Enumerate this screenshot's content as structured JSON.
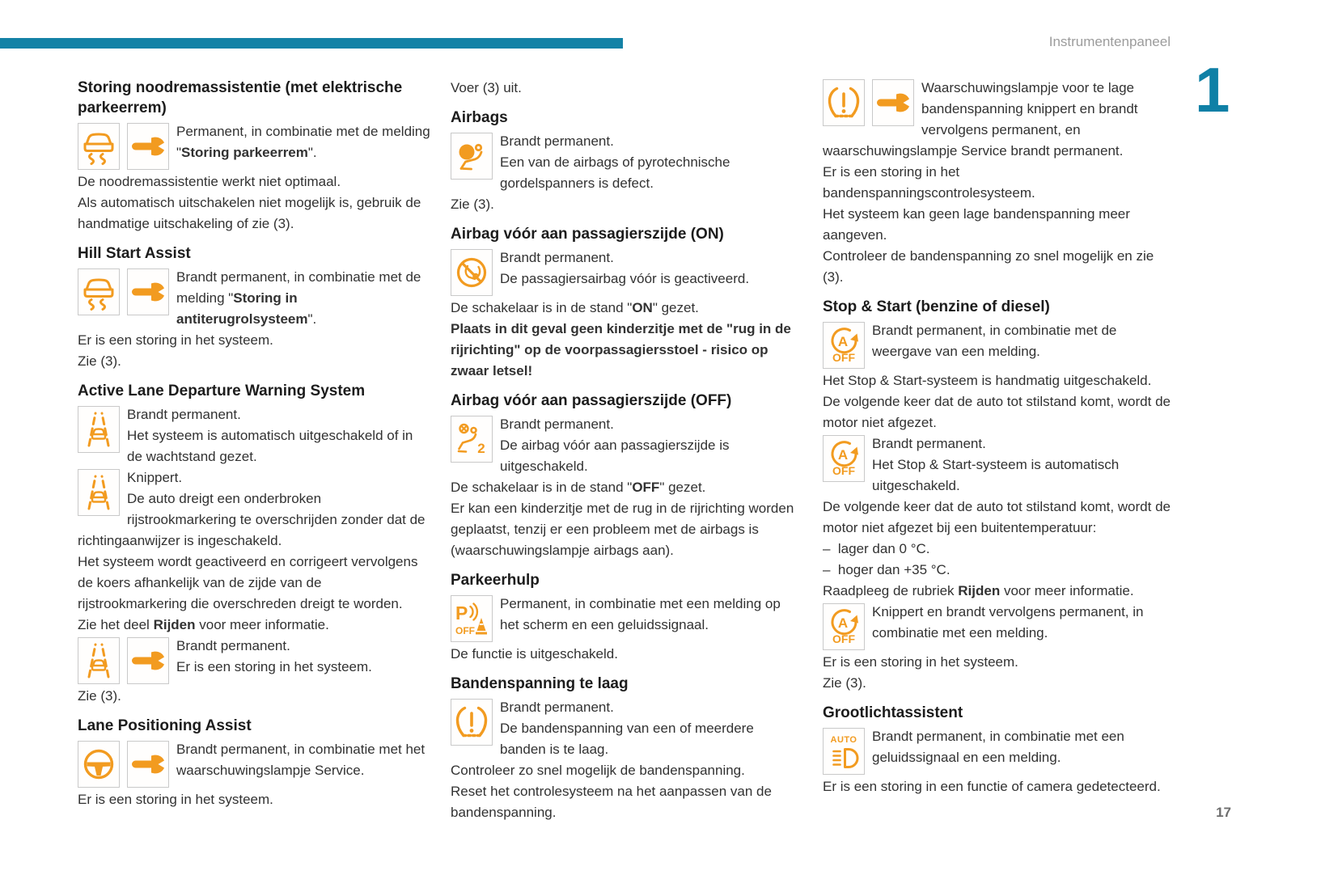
{
  "page": {
    "header_label": "Instrumentenpaneel",
    "chapter_number": "1",
    "page_number": "17",
    "colors": {
      "accent_bar": "#1482A6",
      "chapter_numeral": "#0F80A6",
      "warning_icon": "#F29B20"
    }
  },
  "columns": [
    {
      "blocks": [
        {
          "h": "Storing noodremassistentie (met elektrische parkeerrem)"
        },
        {
          "icons": [
            "car-skid-warning-icon",
            "service-wrench-icon"
          ],
          "paras": [
            [
              {
                "t": "Permanent, in combinatie met de melding \""
              },
              {
                "t": "Storing parkeerrem",
                "b": true
              },
              {
                "t": "\"."
              }
            ]
          ]
        },
        {
          "paras": [
            [
              {
                "t": "De noodremassistentie werkt niet optimaal."
              }
            ]
          ]
        },
        {
          "paras": [
            [
              {
                "t": "Als automatisch uitschakelen niet mogelijk is, gebruik de handmatige uitschakeling of zie (3)."
              }
            ]
          ]
        },
        {
          "h": "Hill Start Assist"
        },
        {
          "icons": [
            "car-skid-warning-icon",
            "service-wrench-icon"
          ],
          "paras": [
            [
              {
                "t": "Brandt permanent, in combinatie met de melding \""
              },
              {
                "t": "Storing in antiterugrolsysteem",
                "b": true
              },
              {
                "t": "\"."
              }
            ]
          ]
        },
        {
          "paras": [
            [
              {
                "t": "Er is een storing in het systeem."
              }
            ]
          ]
        },
        {
          "paras": [
            [
              {
                "t": "Zie (3)."
              }
            ]
          ]
        },
        {
          "h": "Active Lane Departure Warning System"
        },
        {
          "icons": [
            "lane-departure-icon"
          ],
          "paras": [
            [
              {
                "t": "Brandt permanent."
              }
            ],
            [
              {
                "t": "Het systeem is automatisch uitgeschakeld of in de wachtstand gezet."
              }
            ]
          ]
        },
        {
          "icons": [
            "lane-departure-icon"
          ],
          "paras": [
            [
              {
                "t": "Knippert."
              }
            ],
            [
              {
                "t": "De auto dreigt een onderbroken rijstrookmarkering te overschrijden zonder dat de richtingaanwijzer is ingeschakeld."
              }
            ]
          ]
        },
        {
          "paras": [
            [
              {
                "t": "Het systeem wordt geactiveerd en corrigeert vervolgens de koers afhankelijk van de zijde van de rijstrookmarkering die overschreden dreigt te worden."
              }
            ]
          ]
        },
        {
          "paras": [
            [
              {
                "t": "Zie het deel "
              },
              {
                "t": "Rijden",
                "b": true
              },
              {
                "t": " voor meer informatie."
              }
            ]
          ]
        },
        {
          "icons": [
            "lane-departure-icon",
            "service-wrench-icon"
          ],
          "paras": [
            [
              {
                "t": "Brandt permanent."
              }
            ],
            [
              {
                "t": "Er is een storing in het systeem."
              }
            ]
          ]
        },
        {
          "paras": [
            [
              {
                "t": "Zie (3)."
              }
            ]
          ]
        },
        {
          "h": "Lane Positioning Assist"
        },
        {
          "icons": [
            "steering-wheel-icon",
            "service-wrench-icon"
          ],
          "paras": [
            [
              {
                "t": "Brandt permanent, in combinatie met het waarschuwingslampje Service."
              }
            ]
          ]
        },
        {
          "paras": [
            [
              {
                "t": "Er is een storing in het systeem."
              }
            ]
          ]
        }
      ]
    },
    {
      "blocks": [
        {
          "paras": [
            [
              {
                "t": "Voer (3) uit."
              }
            ]
          ]
        },
        {
          "h": "Airbags"
        },
        {
          "icons": [
            "airbag-icon"
          ],
          "paras": [
            [
              {
                "t": "Brandt permanent."
              }
            ],
            [
              {
                "t": "Een van de airbags of pyrotechnische gordelspanners is defect."
              }
            ]
          ]
        },
        {
          "paras": [
            [
              {
                "t": "Zie (3)."
              }
            ]
          ]
        },
        {
          "h": "Airbag vóór aan passagierszijde (ON)"
        },
        {
          "icons": [
            "airbag-on-icon"
          ],
          "paras": [
            [
              {
                "t": "Brandt permanent."
              }
            ],
            [
              {
                "t": "De passagiersairbag vóór is geactiveerd."
              }
            ]
          ]
        },
        {
          "paras": [
            [
              {
                "t": "De schakelaar is in de stand \""
              },
              {
                "t": "ON",
                "b": true
              },
              {
                "t": "\" gezet."
              }
            ]
          ]
        },
        {
          "paras": [
            [
              {
                "t": "Plaats in dit geval geen kinderzitje met de \"rug in de rijrichting\" op de voorpassagiersstoel - risico op zwaar letsel!",
                "b": true
              }
            ]
          ]
        },
        {
          "h": "Airbag vóór aan passagierszijde (OFF)"
        },
        {
          "icons": [
            "airbag-off-icon"
          ],
          "paras": [
            [
              {
                "t": "Brandt permanent."
              }
            ],
            [
              {
                "t": "De airbag vóór aan passagierszijde is uitgeschakeld."
              }
            ]
          ]
        },
        {
          "paras": [
            [
              {
                "t": "De schakelaar is in de stand \""
              },
              {
                "t": "OFF",
                "b": true
              },
              {
                "t": "\" gezet."
              }
            ]
          ]
        },
        {
          "paras": [
            [
              {
                "t": "Er kan een kinderzitje met de rug in de rijrichting worden geplaatst, tenzij er een probleem met de airbags is (waarschuwingslampje airbags aan)."
              }
            ]
          ]
        },
        {
          "h": "Parkeerhulp"
        },
        {
          "icons": [
            "parking-assist-off-icon"
          ],
          "paras": [
            [
              {
                "t": "Permanent, in combinatie met een melding op het scherm en een geluidssignaal."
              }
            ]
          ]
        },
        {
          "paras": [
            [
              {
                "t": "De functie is uitgeschakeld."
              }
            ]
          ]
        },
        {
          "h": "Bandenspanning te laag"
        },
        {
          "icons": [
            "tire-pressure-icon"
          ],
          "paras": [
            [
              {
                "t": "Brandt permanent."
              }
            ],
            [
              {
                "t": "De bandenspanning van een of meerdere banden is te laag."
              }
            ]
          ]
        },
        {
          "paras": [
            [
              {
                "t": "Controleer zo snel mogelijk de bandenspanning."
              }
            ]
          ]
        },
        {
          "paras": [
            [
              {
                "t": "Reset het controlesysteem na het aanpassen van de bandenspanning."
              }
            ]
          ]
        }
      ]
    },
    {
      "blocks": [
        {
          "icons": [
            "tire-pressure-icon",
            "service-wrench-icon"
          ],
          "paras": [
            [
              {
                "t": "Waarschuwingslampje voor te lage bandenspanning knippert en brandt vervolgens permanent, en waarschuwingslampje Service brandt permanent."
              }
            ]
          ]
        },
        {
          "paras": [
            [
              {
                "t": "Er is een storing in het bandenspanningscontrolesysteem."
              }
            ]
          ]
        },
        {
          "paras": [
            [
              {
                "t": "Het systeem kan geen lage bandenspanning meer aangeven."
              }
            ]
          ]
        },
        {
          "paras": [
            [
              {
                "t": "Controleer de bandenspanning zo snel mogelijk en zie (3)."
              }
            ]
          ]
        },
        {
          "h": "Stop & Start (benzine of diesel)"
        },
        {
          "icons": [
            "stop-start-off-icon"
          ],
          "paras": [
            [
              {
                "t": "Brandt permanent, in combinatie met de weergave van een melding."
              }
            ]
          ]
        },
        {
          "paras": [
            [
              {
                "t": "Het Stop & Start-systeem is handmatig uitgeschakeld."
              }
            ]
          ]
        },
        {
          "paras": [
            [
              {
                "t": "De volgende keer dat de auto tot stilstand komt, wordt de motor niet afgezet."
              }
            ]
          ]
        },
        {
          "icons": [
            "stop-start-off-icon"
          ],
          "paras": [
            [
              {
                "t": "Brandt permanent."
              }
            ],
            [
              {
                "t": "Het Stop & Start-systeem is automatisch uitgeschakeld."
              }
            ]
          ]
        },
        {
          "paras": [
            [
              {
                "t": "De volgende keer dat de auto tot stilstand komt, wordt de motor niet afgezet bij een buitentemperatuur:"
              }
            ]
          ]
        },
        {
          "paras": [
            [
              {
                "t": "–  lager dan 0 °C."
              }
            ]
          ]
        },
        {
          "paras": [
            [
              {
                "t": "–  hoger dan +35 °C."
              }
            ]
          ]
        },
        {
          "paras": [
            [
              {
                "t": "Raadpleeg de rubriek "
              },
              {
                "t": "Rijden",
                "b": true
              },
              {
                "t": " voor meer informatie."
              }
            ]
          ]
        },
        {
          "icons": [
            "stop-start-off-icon"
          ],
          "paras": [
            [
              {
                "t": "Knippert en brandt vervolgens permanent, in combinatie met een melding."
              }
            ]
          ]
        },
        {
          "paras": [
            [
              {
                "t": "Er is een storing in het systeem."
              }
            ]
          ]
        },
        {
          "paras": [
            [
              {
                "t": "Zie (3)."
              }
            ]
          ]
        },
        {
          "h": "Grootlichtassistent"
        },
        {
          "icons": [
            "auto-headlight-icon"
          ],
          "paras": [
            [
              {
                "t": "Brandt permanent, in combinatie met een geluidssignaal en een melding."
              }
            ]
          ]
        },
        {
          "paras": [
            [
              {
                "t": "Er is een storing in een functie of camera gedetecteerd."
              }
            ]
          ]
        }
      ]
    }
  ]
}
